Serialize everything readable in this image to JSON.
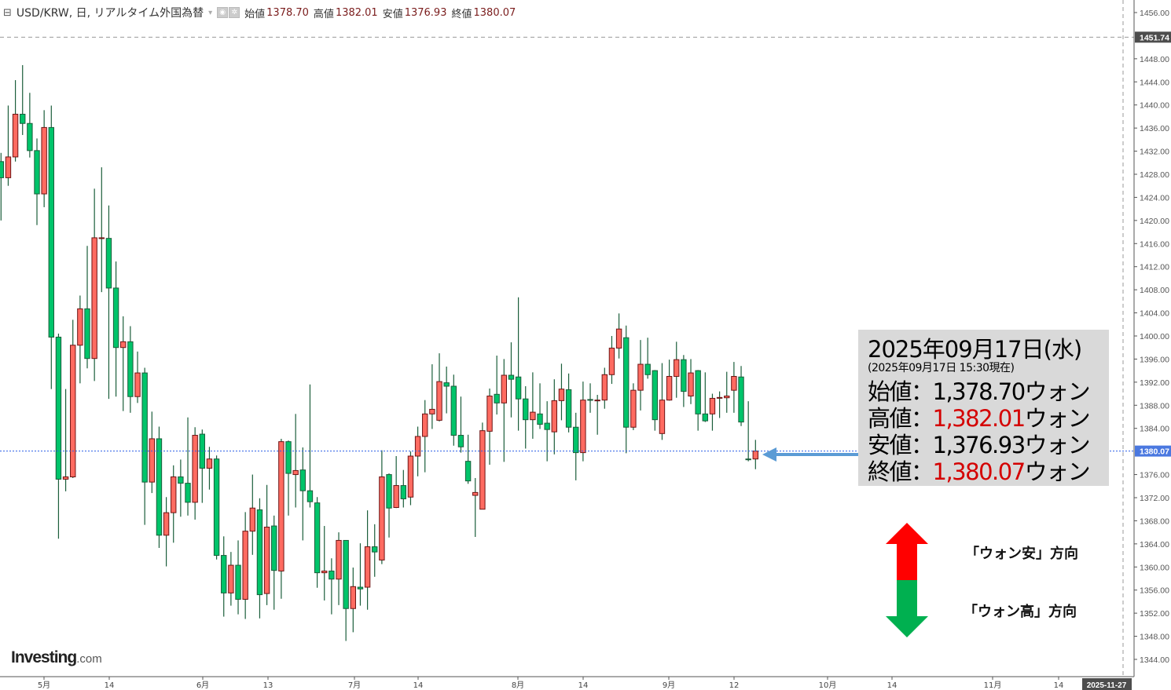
{
  "header": {
    "collapse_icon": "square-minus-icon",
    "symbol": "USD/KRW, 日, リアルタイム外国為替",
    "open_label": "始値",
    "open_value": "1378.70",
    "high_label": "高値",
    "high_value": "1382.01",
    "low_label": "安値",
    "low_value": "1376.93",
    "close_label": "終値",
    "close_value": "1380.07"
  },
  "info_box": {
    "date": "2025年09月17日(水)",
    "as_of": "(2025年09月17日 15:30現在)",
    "rows": [
      {
        "label": "始値：",
        "value": "1,378.70",
        "unit": "ウォン",
        "highlight": false
      },
      {
        "label": "高値：",
        "value": "1,382.01",
        "unit": "ウォン",
        "highlight": true
      },
      {
        "label": "安値：",
        "value": "1,376.93",
        "unit": "ウォン",
        "highlight": false
      },
      {
        "label": "終値：",
        "value": "1,380.07",
        "unit": "ウォン",
        "highlight": true
      }
    ]
  },
  "direction": {
    "up_label": "「ウォン安」方向",
    "down_label": "「ウォン高」方向",
    "up_color": "#ff0000",
    "down_color": "#00b050"
  },
  "logo": {
    "brand": "Investing",
    "suffix": ".com"
  },
  "colors": {
    "up_candle": "#ff6b61",
    "down_candle": "#00c46a",
    "current_price_line": "#2a5ee8",
    "annotation_arrow": "#5b9bd5"
  },
  "chart_data": {
    "type": "candlestick",
    "ohlc_order": [
      "open",
      "high",
      "low",
      "close"
    ],
    "ylim": [
      1342,
      1458
    ],
    "y_ticks": [
      "1456.00",
      "1448.00",
      "1444.00",
      "1440.00",
      "1436.00",
      "1432.00",
      "1428.00",
      "1424.00",
      "1420.00",
      "1416.00",
      "1412.00",
      "1408.00",
      "1404.00",
      "1400.00",
      "1396.00",
      "1392.00",
      "1388.00",
      "1384.00",
      "1376.00",
      "1372.00",
      "1368.00",
      "1364.00",
      "1360.00",
      "1356.00",
      "1352.00",
      "1348.00",
      "1344.00"
    ],
    "x_ticks": [
      "5月",
      "14",
      "6月",
      "13",
      "7月",
      "14",
      "8月",
      "14",
      "9月",
      "12",
      "10月",
      "14",
      "11月",
      "14"
    ],
    "x_end_label": "2025-11-27",
    "markers": [
      {
        "label": "1451.74",
        "value": 1451.74,
        "style": "dashed"
      },
      {
        "label": "1380.07",
        "value": 1380.07,
        "style": "current"
      }
    ],
    "grid": false,
    "ohlc": [
      [
        1430.2,
        1431.7,
        1420.0,
        1427.4
      ],
      [
        1427.4,
        1439.9,
        1426.0,
        1431.0
      ],
      [
        1431.0,
        1444.3,
        1430.2,
        1438.4
      ],
      [
        1438.4,
        1446.9,
        1434.8,
        1436.8
      ],
      [
        1436.8,
        1442.1,
        1430.9,
        1432.1
      ],
      [
        1432.1,
        1434.2,
        1419.2,
        1424.6
      ],
      [
        1424.6,
        1439.1,
        1422.3,
        1436.1
      ],
      [
        1436.1,
        1439.9,
        1390.8,
        1399.8
      ],
      [
        1399.8,
        1400.4,
        1364.9,
        1375.2
      ],
      [
        1375.2,
        1390.8,
        1373.1,
        1375.6
      ],
      [
        1375.6,
        1402.8,
        1375.4,
        1398.4
      ],
      [
        1398.4,
        1407.0,
        1391.8,
        1404.7
      ],
      [
        1404.7,
        1415.6,
        1394.4,
        1396.1
      ],
      [
        1396.1,
        1425.5,
        1392.2,
        1417.0
      ],
      [
        1417.0,
        1429.2,
        1407.6,
        1417.0
      ],
      [
        1416.9,
        1422.6,
        1389.1,
        1408.3
      ],
      [
        1408.3,
        1412.9,
        1389.5,
        1398.0
      ],
      [
        1398.0,
        1403.4,
        1387.0,
        1399.0
      ],
      [
        1399.0,
        1401.7,
        1386.7,
        1389.5
      ],
      [
        1389.5,
        1397.3,
        1388.4,
        1393.6
      ],
      [
        1393.6,
        1394.5,
        1367.3,
        1374.7
      ],
      [
        1374.7,
        1386.9,
        1372.8,
        1382.2
      ],
      [
        1382.2,
        1384.3,
        1363.3,
        1365.5
      ],
      [
        1365.5,
        1372.1,
        1360.1,
        1369.4
      ],
      [
        1369.4,
        1377.6,
        1364.2,
        1375.6
      ],
      [
        1375.6,
        1378.6,
        1368.7,
        1374.5
      ],
      [
        1374.5,
        1385.9,
        1368.9,
        1371.2
      ],
      [
        1371.2,
        1384.2,
        1368.2,
        1382.8
      ],
      [
        1383.0,
        1383.8,
        1371.1,
        1377.1
      ],
      [
        1377.1,
        1380.8,
        1373.4,
        1378.7
      ],
      [
        1378.7,
        1379.3,
        1361.3,
        1362.0
      ],
      [
        1362.0,
        1365.3,
        1351.4,
        1355.5
      ],
      [
        1355.5,
        1362.6,
        1353.3,
        1360.3
      ],
      [
        1360.3,
        1364.6,
        1351.8,
        1354.4
      ],
      [
        1354.4,
        1369.5,
        1351.0,
        1366.2
      ],
      [
        1366.2,
        1376.0,
        1362.1,
        1370.2
      ],
      [
        1369.9,
        1371.9,
        1351.1,
        1355.2
      ],
      [
        1355.4,
        1374.2,
        1353.4,
        1366.9
      ],
      [
        1367.1,
        1368.9,
        1352.6,
        1359.4
      ],
      [
        1359.3,
        1382.2,
        1354.5,
        1381.7
      ],
      [
        1381.7,
        1381.9,
        1368.9,
        1376.2
      ],
      [
        1376.0,
        1386.5,
        1370.3,
        1376.7
      ],
      [
        1376.8,
        1380.7,
        1364.6,
        1373.2
      ],
      [
        1373.2,
        1391.6,
        1370.3,
        1371.3
      ],
      [
        1371.1,
        1372.1,
        1356.4,
        1359.0
      ],
      [
        1359.0,
        1367.1,
        1354.2,
        1359.3
      ],
      [
        1359.3,
        1361.5,
        1351.8,
        1357.9
      ],
      [
        1357.9,
        1366.0,
        1353.4,
        1364.6
      ],
      [
        1364.6,
        1364.6,
        1347.2,
        1352.8
      ],
      [
        1352.8,
        1359.9,
        1348.7,
        1356.6
      ],
      [
        1356.5,
        1364.1,
        1353.3,
        1356.2
      ],
      [
        1356.5,
        1369.8,
        1352.6,
        1363.5
      ],
      [
        1363.5,
        1367.4,
        1358.3,
        1362.6
      ],
      [
        1361.2,
        1380.2,
        1360.5,
        1375.6
      ],
      [
        1376.0,
        1376.2,
        1365.1,
        1370.2
      ],
      [
        1370.3,
        1379.2,
        1370.2,
        1374.1
      ],
      [
        1374.1,
        1376.8,
        1370.3,
        1371.8
      ],
      [
        1372.1,
        1380.0,
        1370.7,
        1379.2
      ],
      [
        1379.2,
        1384.3,
        1375.7,
        1382.6
      ],
      [
        1382.6,
        1388.9,
        1376.4,
        1386.5
      ],
      [
        1386.5,
        1395.1,
        1383.9,
        1387.3
      ],
      [
        1385.4,
        1397.0,
        1385.2,
        1392.1
      ],
      [
        1391.9,
        1394.7,
        1386.6,
        1391.3
      ],
      [
        1391.3,
        1393.3,
        1381.0,
        1382.8
      ],
      [
        1382.8,
        1389.5,
        1379.8,
        1380.8
      ],
      [
        1378.3,
        1382.9,
        1374.4,
        1374.9
      ],
      [
        1372.4,
        1375.4,
        1365.2,
        1372.9
      ],
      [
        1370.0,
        1385.0,
        1370.0,
        1383.6
      ],
      [
        1383.5,
        1390.9,
        1377.7,
        1389.6
      ],
      [
        1389.9,
        1396.6,
        1386.4,
        1388.4
      ],
      [
        1388.4,
        1396.0,
        1378.2,
        1393.2
      ],
      [
        1393.2,
        1398.9,
        1385.9,
        1392.5
      ],
      [
        1392.9,
        1406.7,
        1383.6,
        1389.1
      ],
      [
        1389.1,
        1391.3,
        1380.5,
        1385.5
      ],
      [
        1385.5,
        1393.7,
        1382.2,
        1386.8
      ],
      [
        1386.5,
        1391.8,
        1383.9,
        1384.7
      ],
      [
        1384.9,
        1388.7,
        1378.3,
        1383.8
      ],
      [
        1383.4,
        1392.5,
        1379.5,
        1388.8
      ],
      [
        1388.8,
        1395.2,
        1385.4,
        1390.8
      ],
      [
        1390.7,
        1393.5,
        1383.3,
        1384.2
      ],
      [
        1384.2,
        1386.7,
        1375.0,
        1379.8
      ],
      [
        1379.8,
        1392.1,
        1378.3,
        1388.9
      ],
      [
        1389.0,
        1391.8,
        1386.7,
        1388.95
      ],
      [
        1388.9,
        1389.8,
        1382.9,
        1388.9
      ],
      [
        1388.9,
        1394.5,
        1387.4,
        1393.3
      ],
      [
        1393.3,
        1400.0,
        1391.7,
        1397.9
      ],
      [
        1397.9,
        1403.9,
        1396.1,
        1401.2
      ],
      [
        1399.7,
        1401.8,
        1379.7,
        1384.2
      ],
      [
        1384.2,
        1391.8,
        1383.7,
        1390.6
      ],
      [
        1390.6,
        1399.3,
        1387.1,
        1395.1
      ],
      [
        1395.1,
        1399.7,
        1392.6,
        1393.3
      ],
      [
        1394.0,
        1394.1,
        1383.6,
        1385.5
      ],
      [
        1383.1,
        1395.3,
        1382.0,
        1388.9
      ],
      [
        1388.9,
        1395.9,
        1388.8,
        1393.0
      ],
      [
        1393.0,
        1399.0,
        1389.3,
        1395.9
      ],
      [
        1395.9,
        1396.7,
        1387.7,
        1390.4
      ],
      [
        1389.6,
        1396.0,
        1388.2,
        1393.6
      ],
      [
        1394.0,
        1394.1,
        1383.6,
        1386.5
      ],
      [
        1386.5,
        1393.7,
        1385.1,
        1385.3
      ],
      [
        1386.5,
        1390.0,
        1383.6,
        1389.2
      ],
      [
        1389.3,
        1390.4,
        1385.8,
        1389.35
      ],
      [
        1389.3,
        1393.8,
        1386.7,
        1389.6
      ],
      [
        1390.6,
        1395.5,
        1386.7,
        1393.0
      ],
      [
        1392.9,
        1394.8,
        1384.4,
        1385.1
      ],
      [
        1378.7,
        1388.7,
        1378.3,
        1378.6
      ],
      [
        1378.7,
        1382.01,
        1376.93,
        1380.07
      ]
    ]
  }
}
